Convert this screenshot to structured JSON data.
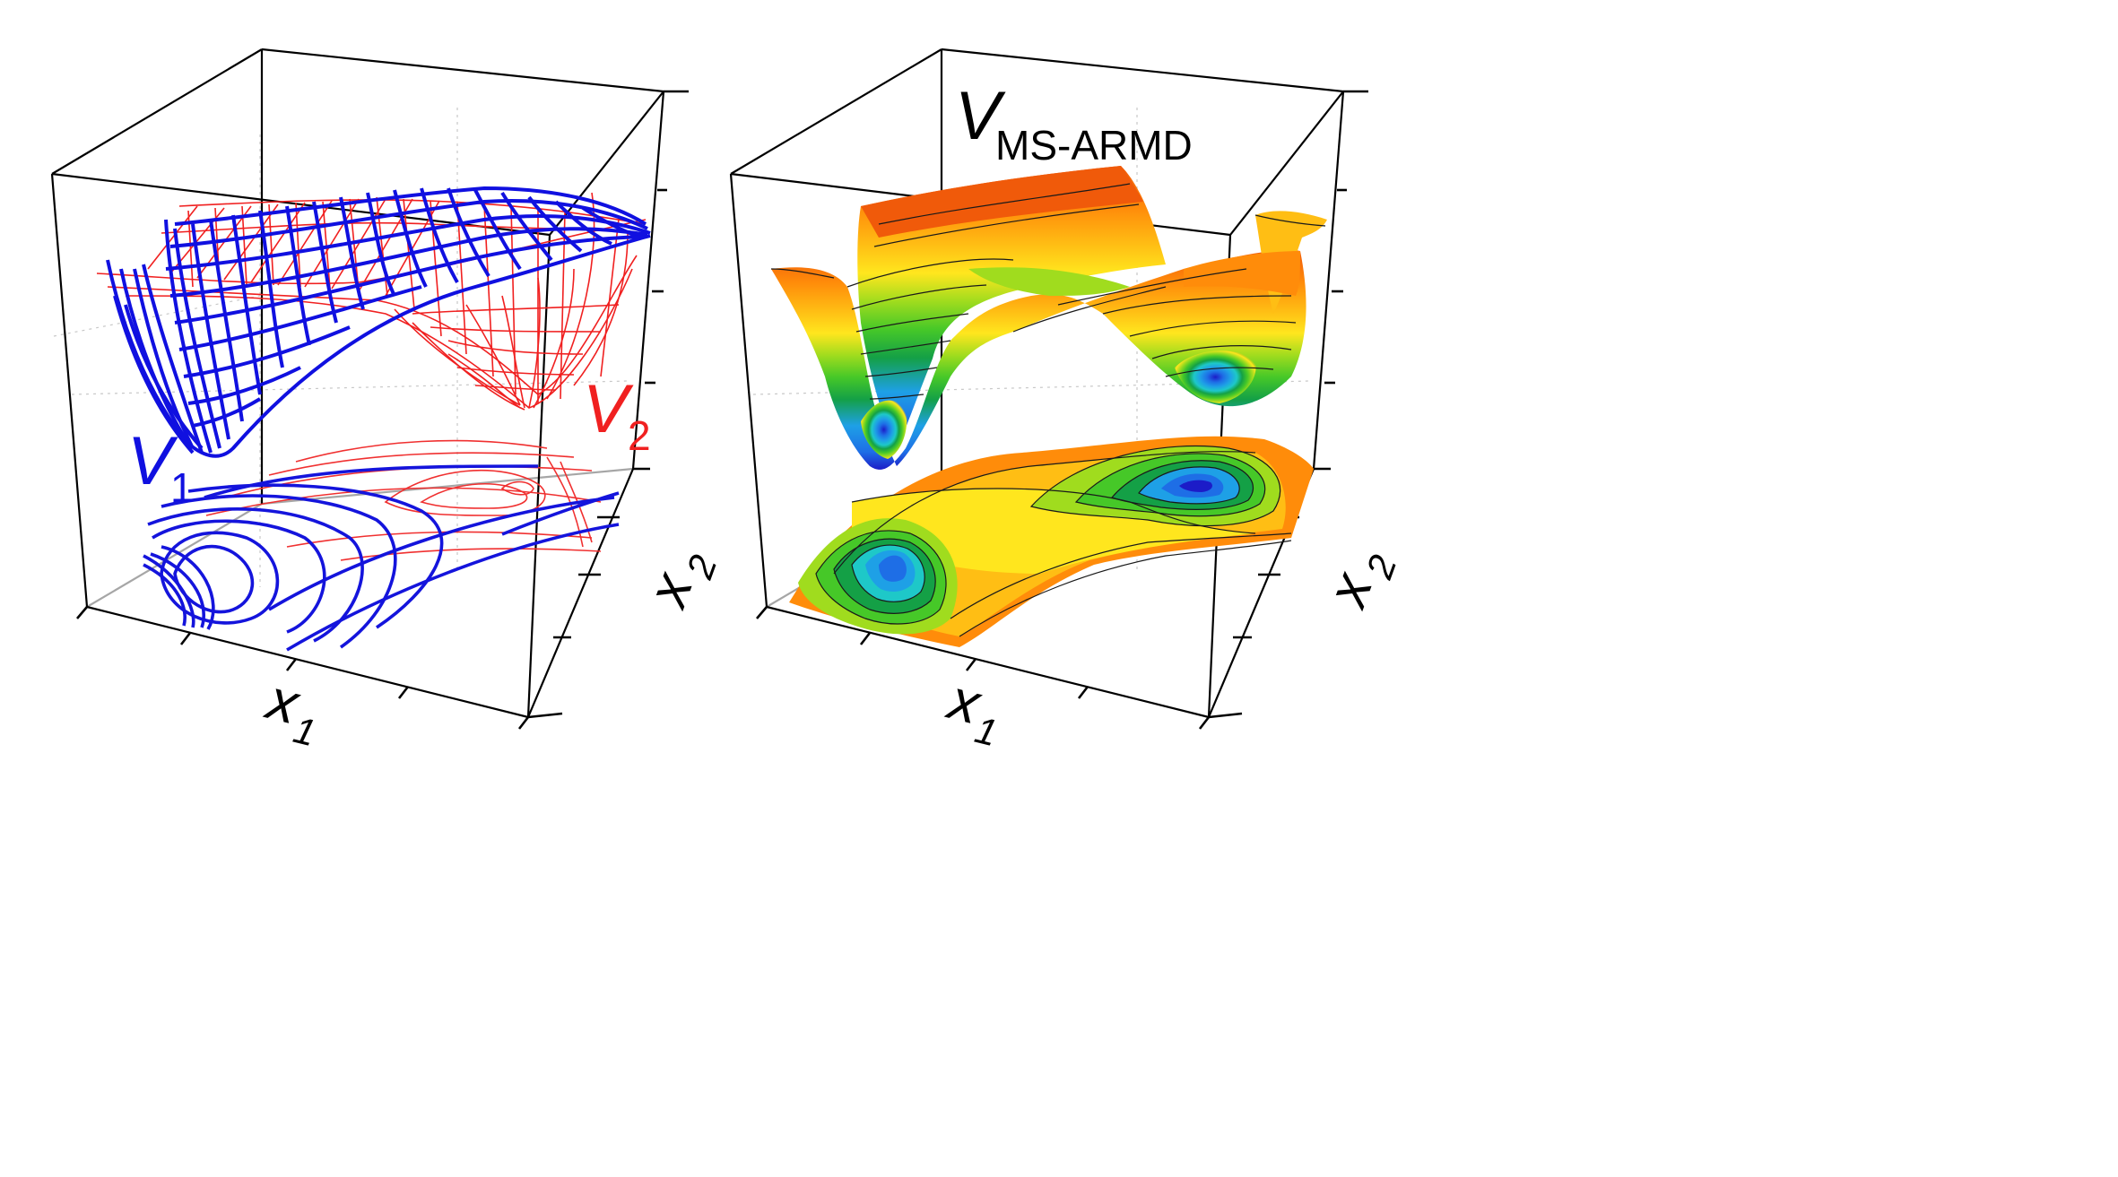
{
  "panels": [
    {
      "id": "left",
      "axes": {
        "x1": "x",
        "x1_sub": "1",
        "x2": "x",
        "x2_sub": "2"
      },
      "surfaces": [
        {
          "label": "V",
          "sub": "1",
          "color": "#1010e0"
        },
        {
          "label": "V",
          "sub": "2",
          "color": "#f02020"
        }
      ]
    },
    {
      "id": "right",
      "axes": {
        "x1": "x",
        "x1_sub": "1",
        "x2": "x",
        "x2_sub": "2"
      },
      "surfaces": [
        {
          "label": "V",
          "sub": "MS-ARMD",
          "color": "#000000"
        }
      ]
    }
  ],
  "palette": [
    "#1c1cc8",
    "#1e6ee6",
    "#1ea0e6",
    "#1ec8c8",
    "#14a046",
    "#46c828",
    "#a0dc1e",
    "#e6f01e",
    "#ffe61e",
    "#ffbe14",
    "#ff8c0a",
    "#f05a0a"
  ]
}
